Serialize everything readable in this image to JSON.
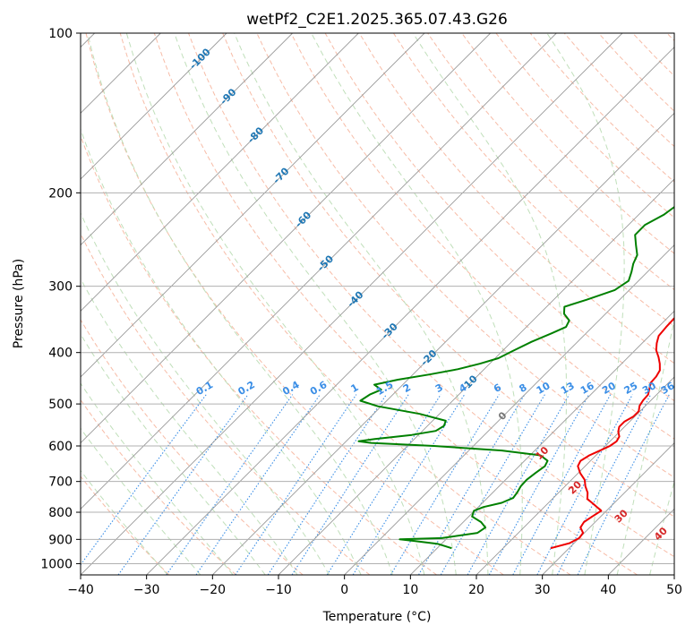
{
  "chart_data": {
    "type": "line",
    "title": "wetPf2_C2E1.2025.365.07.43.G26",
    "xlabel": "Temperature (°C)",
    "ylabel": "Pressure (hPa)",
    "xlim": [
      -40,
      50
    ],
    "ylim": [
      1050,
      100
    ],
    "y_scale": "log",
    "grid": true,
    "x_ticks": [
      -40,
      -30,
      -20,
      -10,
      0,
      10,
      20,
      30,
      40,
      50
    ],
    "y_ticks": [
      100,
      200,
      300,
      400,
      500,
      600,
      700,
      800,
      900,
      1000
    ],
    "colors": {
      "temperature": "#ee0000",
      "dewpoint": "#008000",
      "isotherm": "#999999",
      "dry_adiabat": "#f4a58a",
      "moist_adiabat": "#b9dbb2",
      "mixing_ratio": "#3a8ee6",
      "isotherm_label": "#1f77b4",
      "dry_adiabat_label": "#d62728",
      "zero_label": "#777777"
    },
    "isotherm_labels": [
      "-100",
      "-90",
      "-80",
      "-70",
      "-60",
      "-50",
      "-40",
      "-30",
      "-20",
      "-10",
      "0"
    ],
    "mixing_ratio_labels": [
      "0.1",
      "0.2",
      "0.4",
      "0.6",
      "1",
      "1.5",
      "2",
      "3",
      "4",
      "6",
      "8",
      "10",
      "13",
      "16",
      "20",
      "25",
      "30",
      "36"
    ],
    "dry_adiabat_labels": [
      "10",
      "20",
      "30",
      "40"
    ],
    "series": [
      {
        "name": "temperature",
        "points": [
          [
            27.2,
            935
          ],
          [
            29.3,
            915
          ],
          [
            30.0,
            895
          ],
          [
            29.8,
            875
          ],
          [
            28.6,
            855
          ],
          [
            28.3,
            835
          ],
          [
            28.7,
            815
          ],
          [
            29.2,
            795
          ],
          [
            27.3,
            775
          ],
          [
            25.3,
            755
          ],
          [
            24.4,
            735
          ],
          [
            23.1,
            715
          ],
          [
            22.0,
            695
          ],
          [
            20.3,
            675
          ],
          [
            18.9,
            655
          ],
          [
            18.5,
            640
          ],
          [
            19.0,
            625
          ],
          [
            19.9,
            612
          ],
          [
            20.7,
            600
          ],
          [
            21.0,
            588
          ],
          [
            20.7,
            576
          ],
          [
            19.8,
            564
          ],
          [
            19.2,
            552
          ],
          [
            19.2,
            540
          ],
          [
            19.8,
            528
          ],
          [
            19.8,
            516
          ],
          [
            19.1,
            504
          ],
          [
            18.8,
            492
          ],
          [
            18.7,
            480
          ],
          [
            18.0,
            468
          ],
          [
            17.3,
            456
          ],
          [
            17.2,
            444
          ],
          [
            16.8,
            432
          ],
          [
            15.8,
            420
          ],
          [
            14.6,
            408
          ],
          [
            13.2,
            396
          ],
          [
            12.2,
            384
          ],
          [
            11.4,
            372
          ],
          [
            11.2,
            358
          ],
          [
            11.1,
            345
          ],
          [
            11.2,
            332
          ],
          [
            10.9,
            318
          ],
          [
            10.1,
            304
          ],
          [
            9.0,
            290
          ],
          [
            8.1,
            276
          ],
          [
            7.3,
            262
          ],
          [
            6.8,
            248
          ],
          [
            6.7,
            236
          ],
          [
            6.6,
            224
          ],
          [
            6.3,
            212
          ],
          [
            6.1,
            200
          ],
          [
            5.8,
            188
          ],
          [
            5.3,
            176
          ],
          [
            5.0,
            165
          ],
          [
            4.8,
            155
          ],
          [
            4.9,
            146
          ],
          [
            4.9,
            138
          ],
          [
            4.8,
            130
          ],
          [
            4.7,
            122
          ],
          [
            4.9,
            115
          ],
          [
            5.3,
            109
          ],
          [
            5.4,
            104
          ],
          [
            5.4,
            100
          ]
        ]
      },
      {
        "name": "dewpoint",
        "points": [
          [
            12.2,
            935
          ],
          [
            9.5,
            918
          ],
          [
            5.3,
            906
          ],
          [
            3.0,
            900
          ],
          [
            9.2,
            895
          ],
          [
            13.8,
            875
          ],
          [
            14.2,
            855
          ],
          [
            12.7,
            835
          ],
          [
            10.5,
            815
          ],
          [
            9.9,
            795
          ],
          [
            10.8,
            782
          ],
          [
            12.9,
            768
          ],
          [
            13.9,
            752
          ],
          [
            13.7,
            735
          ],
          [
            13.3,
            715
          ],
          [
            13.2,
            695
          ],
          [
            13.5,
            675
          ],
          [
            13.9,
            655
          ],
          [
            13.5,
            640
          ],
          [
            11.6,
            625
          ],
          [
            5.0,
            612
          ],
          [
            -6.0,
            600
          ],
          [
            -16.0,
            592
          ],
          [
            -18.1,
            588
          ],
          [
            -16.0,
            582
          ],
          [
            -11.0,
            572
          ],
          [
            -8.0,
            562
          ],
          [
            -7.5,
            550
          ],
          [
            -8.0,
            538
          ],
          [
            -13.0,
            522
          ],
          [
            -20.5,
            505
          ],
          [
            -24.0,
            493
          ],
          [
            -23.5,
            480
          ],
          [
            -22.5,
            470
          ],
          [
            -24.3,
            460
          ],
          [
            -21.5,
            450
          ],
          [
            -17.5,
            440
          ],
          [
            -14.0,
            430
          ],
          [
            -11.5,
            420
          ],
          [
            -9.5,
            410
          ],
          [
            -8.5,
            398
          ],
          [
            -7.0,
            382
          ],
          [
            -5.2,
            368
          ],
          [
            -4.0,
            358
          ],
          [
            -4.5,
            348
          ],
          [
            -6.3,
            338
          ],
          [
            -7.3,
            328
          ],
          [
            -5.0,
            318
          ],
          [
            -2.2,
            305
          ],
          [
            -1.5,
            293
          ],
          [
            -2.4,
            282
          ],
          [
            -3.4,
            272
          ],
          [
            -4.1,
            262
          ],
          [
            -5.8,
            251
          ],
          [
            -7.5,
            240
          ],
          [
            -7.5,
            230
          ],
          [
            -6.2,
            220
          ],
          [
            -5.6,
            210
          ],
          [
            -5.4,
            200
          ],
          [
            -5.4,
            190
          ],
          [
            -6.2,
            180
          ],
          [
            -7.2,
            171
          ],
          [
            -7.6,
            162
          ],
          [
            -9.0,
            155
          ],
          [
            -10.3,
            150
          ],
          [
            -9.7,
            144
          ],
          [
            -7.2,
            138
          ],
          [
            -3.6,
            133
          ],
          [
            -1.5,
            128
          ],
          [
            -0.3,
            122
          ],
          [
            0.3,
            115
          ],
          [
            0.9,
            109
          ],
          [
            1.4,
            104
          ],
          [
            1.9,
            100
          ]
        ]
      }
    ]
  }
}
